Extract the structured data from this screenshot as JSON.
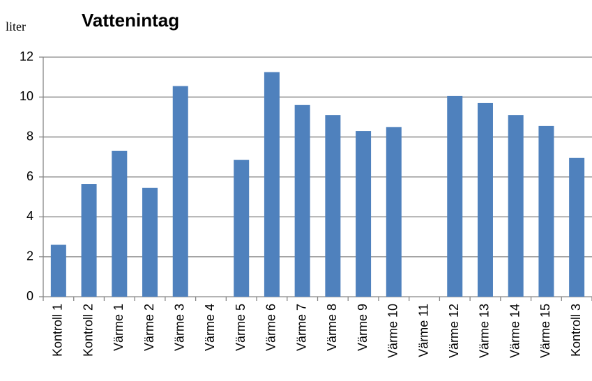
{
  "chart_data": {
    "type": "bar",
    "title": "Vattenintag",
    "y_label": "liter",
    "categories": [
      "Kontroll 1",
      "Kontroll 2",
      "Värme 1",
      "Värme 2",
      "Värme 3",
      "Värme 4",
      "Värme 5",
      "Värme 6",
      "Värme 7",
      "Värme 8",
      "Värme 9",
      "Värme 10",
      "Värme 11",
      "Värme 12",
      "Värme 13",
      "Värme 14",
      "Värme 15",
      "Kontroll 3"
    ],
    "values": [
      2.6,
      5.65,
      7.3,
      5.45,
      10.55,
      null,
      6.85,
      11.25,
      9.6,
      9.1,
      8.3,
      8.5,
      null,
      10.05,
      9.7,
      9.1,
      8.55,
      6.95
    ],
    "color": "#4f81bd",
    "ylim": [
      0,
      12
    ],
    "yticks": [
      0,
      2,
      4,
      6,
      8,
      10,
      12
    ],
    "grid": true
  }
}
